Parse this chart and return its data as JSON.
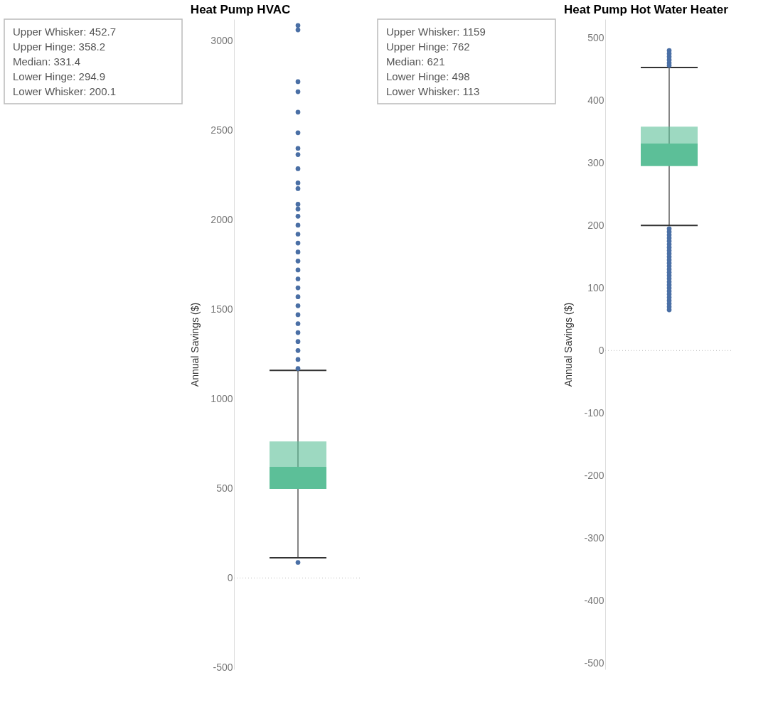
{
  "chart_data": [
    {
      "type": "box",
      "title": "Heat Pump HVAC",
      "ylabel": "Annual Savings ($)",
      "ylim": [
        -510,
        3120
      ],
      "yticks": [
        -500,
        0,
        500,
        1000,
        1500,
        2000,
        2500,
        3000
      ],
      "grid": false,
      "color": "#5cbf98",
      "boxes": [
        {
          "low": 113,
          "q1": 498,
          "median": 621,
          "q3": 762,
          "high": 1159,
          "outliers": [
            87,
            1170,
            1220,
            1270,
            1320,
            1370,
            1420,
            1470,
            1520,
            1570,
            1620,
            1670,
            1720,
            1770,
            1820,
            1870,
            1920,
            1970,
            2020,
            2060,
            2087,
            2174,
            2206,
            2285,
            2364,
            2399,
            2486,
            2601,
            2715,
            2771,
            3060,
            3085
          ]
        }
      ],
      "ref_lines": [
        {
          "axis": "y",
          "value": 0,
          "line_style": "dotted",
          "color": "#bbbbbb"
        }
      ],
      "annotations": [
        "Upper Whisker: 452.7",
        "Upper Hinge: 358.2",
        "Median: 331.4",
        "Lower Hinge: 294.9",
        "Lower Whisker: 200.1"
      ]
    },
    {
      "type": "box",
      "title": "Heat Pump Hot Water Heater",
      "ylabel": "Annual Savings ($)",
      "ylim": [
        -510,
        530
      ],
      "yticks": [
        -500,
        -400,
        -300,
        -200,
        -100,
        0,
        100,
        200,
        300,
        400,
        500
      ],
      "grid": false,
      "color": "#5cbf98",
      "boxes": [
        {
          "low": 200.1,
          "q1": 294.9,
          "median": 331.4,
          "q3": 358.2,
          "high": 452.7,
          "outliers": [
            65,
            70,
            75,
            80,
            85,
            90,
            95,
            100,
            105,
            110,
            115,
            120,
            125,
            130,
            135,
            140,
            145,
            150,
            155,
            160,
            165,
            170,
            175,
            180,
            185,
            190,
            195,
            456,
            460,
            465,
            470,
            475,
            480
          ]
        }
      ],
      "ref_lines": [
        {
          "axis": "y",
          "value": 0,
          "line_style": "dotted",
          "color": "#bbbbbb"
        }
      ],
      "annotations": [
        "Upper Whisker: 1159",
        "Upper Hinge: 762",
        "Median: 621",
        "Lower Hinge: 498",
        "Lower Whisker: 113"
      ]
    }
  ]
}
